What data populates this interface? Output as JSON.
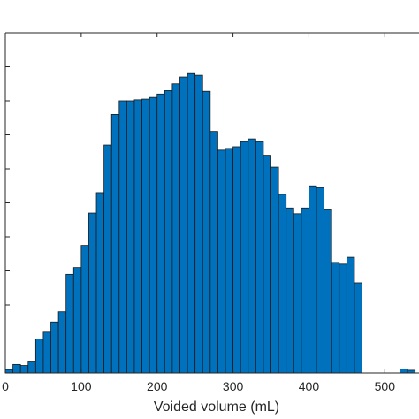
{
  "chart_data": {
    "type": "bar",
    "xlabel": "Voided volume (mL)",
    "ylabel": "",
    "title": "",
    "bar_color": "#0072BD",
    "edge_color": "#1a1a1a",
    "bin_width": 10,
    "bin_start": 0,
    "xlim": [
      0,
      580
    ],
    "ylim": [
      0,
      1.0
    ],
    "xticks": [
      0,
      100,
      200,
      300,
      400,
      500
    ],
    "xtick_labels": [
      "0",
      "100",
      "200",
      "300",
      "400",
      "500"
    ],
    "yticks_count": 10,
    "values": [
      0.01,
      0.025,
      0.022,
      0.035,
      0.1,
      0.12,
      0.15,
      0.18,
      0.29,
      0.31,
      0.375,
      0.47,
      0.53,
      0.67,
      0.76,
      0.8,
      0.8,
      0.803,
      0.805,
      0.81,
      0.82,
      0.83,
      0.85,
      0.87,
      0.88,
      0.875,
      0.828,
      0.71,
      0.655,
      0.66,
      0.665,
      0.68,
      0.688,
      0.68,
      0.64,
      0.605,
      0.525,
      0.485,
      0.468,
      0.485,
      0.55,
      0.545,
      0.48,
      0.325,
      0.32,
      0.34,
      0.265,
      0.0,
      0.0,
      0.0,
      0.0,
      0.0
    ],
    "tail_values": [
      0.012,
      0.008
    ]
  }
}
